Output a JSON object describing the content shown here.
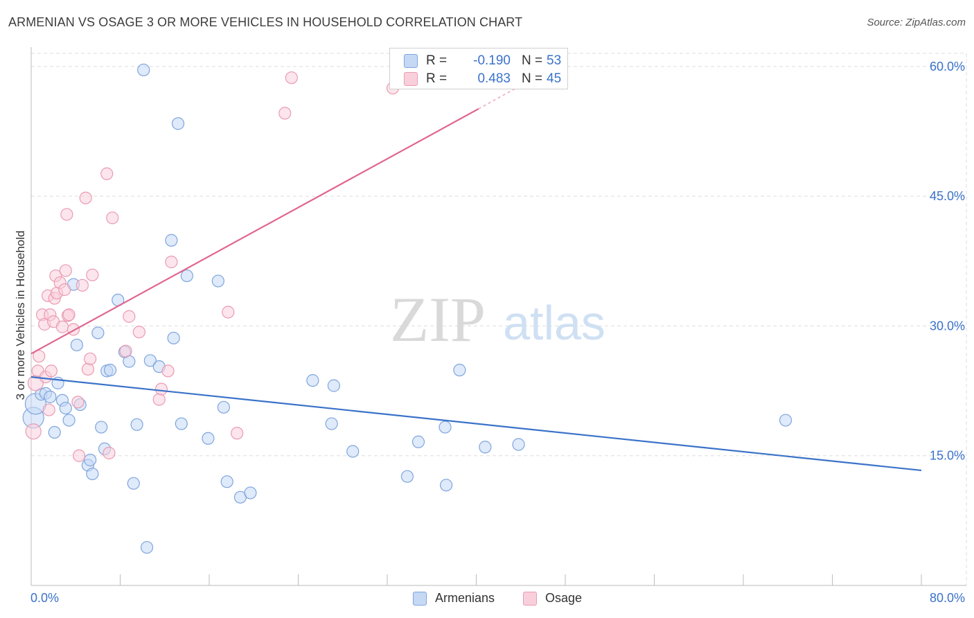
{
  "title": "ARMENIAN VS OSAGE 3 OR MORE VEHICLES IN HOUSEHOLD CORRELATION CHART",
  "source": "Source: ZipAtlas.com",
  "watermark": {
    "zip": "ZIP",
    "atlas": "atlas"
  },
  "stats": [
    {
      "r_label": "R =",
      "r_value": "-0.190",
      "n_label": "N =",
      "n_value": "53"
    },
    {
      "r_label": "R =",
      "r_value": "0.483",
      "n_label": "N =",
      "n_value": "45"
    }
  ],
  "legend": [
    {
      "label": "Armenians",
      "color": "#7ea5dc"
    },
    {
      "label": "Osage",
      "color": "#ea9ab2"
    }
  ],
  "chart_data": {
    "type": "scatter",
    "title": "ARMENIAN VS OSAGE 3 OR MORE VEHICLES IN HOUSEHOLD CORRELATION CHART",
    "xlabel": "",
    "ylabel": "3 or more Vehicles in Household",
    "xlim": [
      0,
      80
    ],
    "ylim": [
      0,
      62
    ],
    "x_tick_labels": [
      "0.0%",
      "80.0%"
    ],
    "y_ticks": [
      15,
      30,
      45,
      60
    ],
    "y_tick_labels": [
      "15.0%",
      "30.0%",
      "45.0%",
      "60.0%"
    ],
    "grid": "horizontal dashed",
    "legend_position": "bottom-center",
    "series": [
      {
        "name": "Armenians",
        "color": "#3a72c9",
        "fill": "#c5d9f5",
        "r": -0.19,
        "n": 53,
        "trend": {
          "x": [
            0,
            80
          ],
          "y": [
            24.1,
            13.3
          ]
        },
        "points": [
          [
            0.2,
            19.4
          ],
          [
            0.4,
            21.0
          ],
          [
            0.9,
            22.1
          ],
          [
            1.3,
            22.2
          ],
          [
            1.7,
            21.8
          ],
          [
            2.1,
            17.7
          ],
          [
            2.4,
            23.4
          ],
          [
            2.8,
            21.4
          ],
          [
            3.1,
            20.5
          ],
          [
            3.4,
            19.1
          ],
          [
            3.8,
            34.8
          ],
          [
            4.1,
            27.8
          ],
          [
            4.4,
            20.9
          ],
          [
            5.1,
            13.9
          ],
          [
            5.3,
            14.5
          ],
          [
            5.5,
            12.9
          ],
          [
            6.0,
            29.2
          ],
          [
            6.3,
            18.3
          ],
          [
            6.6,
            15.8
          ],
          [
            6.8,
            24.8
          ],
          [
            7.1,
            24.9
          ],
          [
            7.8,
            33.0
          ],
          [
            8.4,
            27.0
          ],
          [
            8.8,
            25.9
          ],
          [
            9.2,
            11.8
          ],
          [
            9.5,
            18.6
          ],
          [
            10.1,
            59.6
          ],
          [
            10.4,
            4.4
          ],
          [
            10.7,
            26.0
          ],
          [
            11.5,
            25.3
          ],
          [
            12.6,
            39.9
          ],
          [
            12.8,
            28.6
          ],
          [
            13.2,
            53.4
          ],
          [
            13.5,
            18.7
          ],
          [
            14.0,
            35.8
          ],
          [
            15.9,
            17.0
          ],
          [
            16.8,
            35.2
          ],
          [
            17.3,
            20.6
          ],
          [
            17.6,
            12.0
          ],
          [
            18.8,
            10.2
          ],
          [
            19.7,
            10.7
          ],
          [
            25.3,
            23.7
          ],
          [
            27.0,
            18.7
          ],
          [
            27.2,
            23.1
          ],
          [
            28.9,
            15.5
          ],
          [
            33.8,
            12.6
          ],
          [
            34.8,
            16.6
          ],
          [
            37.2,
            18.3
          ],
          [
            37.3,
            11.6
          ],
          [
            38.5,
            24.9
          ],
          [
            40.8,
            16.0
          ],
          [
            43.8,
            16.3
          ],
          [
            67.8,
            19.1
          ]
        ]
      },
      {
        "name": "Osage",
        "color": "#e0668f",
        "fill": "#f9cfdc",
        "r": 0.483,
        "n": 45,
        "trend": {
          "x": [
            0,
            40.2
          ],
          "y": [
            26.8,
            55.1
          ]
        },
        "trend_dashed": {
          "x": [
            40.2,
            44.0
          ],
          "y": [
            55.1,
            57.8
          ]
        },
        "points": [
          [
            0.2,
            17.8
          ],
          [
            0.4,
            23.4
          ],
          [
            0.6,
            24.8
          ],
          [
            0.7,
            26.5
          ],
          [
            1.0,
            31.3
          ],
          [
            1.2,
            30.2
          ],
          [
            1.3,
            24.1
          ],
          [
            1.5,
            33.5
          ],
          [
            1.6,
            20.3
          ],
          [
            1.7,
            31.3
          ],
          [
            1.8,
            24.8
          ],
          [
            2.0,
            30.5
          ],
          [
            2.1,
            33.2
          ],
          [
            2.2,
            35.8
          ],
          [
            2.3,
            33.8
          ],
          [
            2.6,
            35.0
          ],
          [
            2.8,
            29.9
          ],
          [
            3.0,
            34.2
          ],
          [
            3.1,
            36.4
          ],
          [
            3.2,
            42.9
          ],
          [
            3.3,
            31.2
          ],
          [
            3.4,
            31.3
          ],
          [
            3.8,
            29.6
          ],
          [
            4.2,
            21.2
          ],
          [
            4.3,
            15.0
          ],
          [
            4.6,
            34.7
          ],
          [
            4.9,
            44.8
          ],
          [
            5.1,
            25.0
          ],
          [
            5.3,
            26.2
          ],
          [
            5.5,
            35.9
          ],
          [
            6.8,
            47.6
          ],
          [
            7.0,
            15.3
          ],
          [
            7.3,
            42.5
          ],
          [
            8.5,
            27.1
          ],
          [
            8.8,
            31.1
          ],
          [
            9.7,
            29.3
          ],
          [
            11.5,
            21.5
          ],
          [
            11.7,
            22.7
          ],
          [
            12.3,
            24.8
          ],
          [
            12.6,
            37.4
          ],
          [
            17.7,
            31.6
          ],
          [
            18.5,
            17.6
          ],
          [
            22.8,
            54.6
          ],
          [
            23.4,
            58.7
          ],
          [
            32.5,
            57.5
          ]
        ]
      }
    ]
  }
}
